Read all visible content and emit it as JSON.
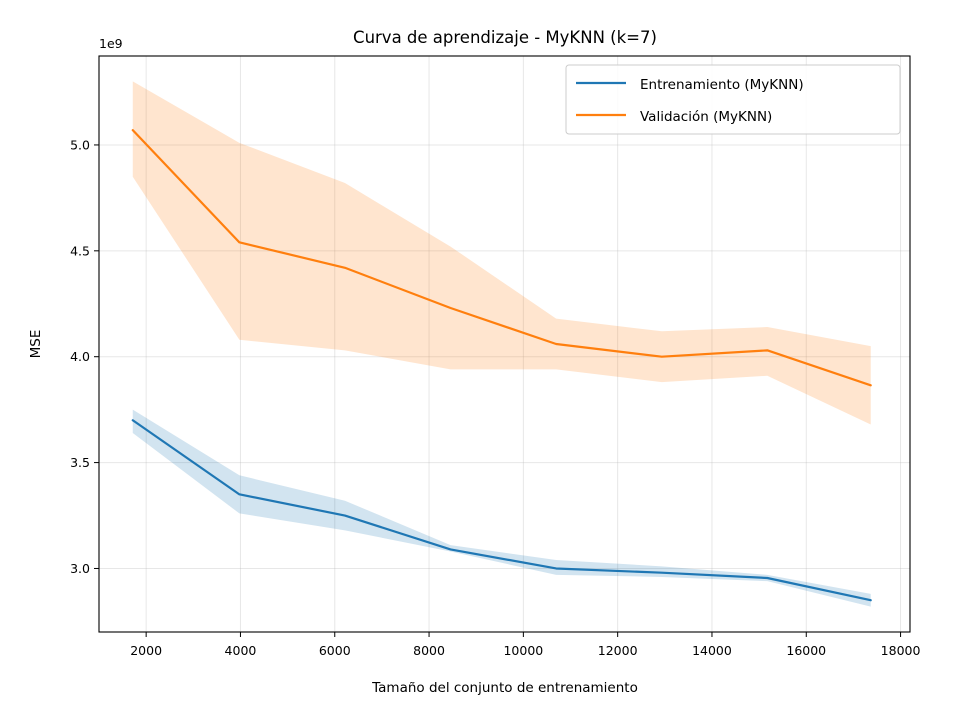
{
  "chart_data": {
    "type": "line",
    "title": "Curva de aprendizaje - MyKNN (k=7)",
    "xlabel": "Tamaño del conjunto de entrenamiento",
    "ylabel": "MSE",
    "y_offset_label": "1e9",
    "xlim": [
      1000,
      18200
    ],
    "ylim": [
      2.7,
      5.42
    ],
    "xticks": [
      2000,
      4000,
      6000,
      8000,
      10000,
      12000,
      14000,
      16000,
      18000
    ],
    "yticks": [
      3.0,
      3.5,
      4.0,
      4.5,
      5.0
    ],
    "xtick_labels": [
      "2000",
      "4000",
      "6000",
      "8000",
      "10000",
      "12000",
      "14000",
      "16000",
      "18000"
    ],
    "ytick_labels": [
      "3.0",
      "3.5",
      "4.0",
      "4.5",
      "5.0"
    ],
    "grid": true,
    "legend_position": "top-right",
    "x": [
      1716,
      3977,
      6216,
      8456,
      10695,
      12935,
      15174,
      17367
    ],
    "series": [
      {
        "name": "Entrenamiento (MyKNN)",
        "color": "#1f77b4",
        "band_color": "#1f77b4",
        "values": [
          3.7,
          3.35,
          3.25,
          3.09,
          3.0,
          2.98,
          2.955,
          2.85
        ],
        "lower": [
          3.64,
          3.26,
          3.18,
          3.08,
          2.97,
          2.96,
          2.94,
          2.82
        ],
        "upper": [
          3.75,
          3.44,
          3.32,
          3.11,
          3.04,
          3.01,
          2.97,
          2.88
        ]
      },
      {
        "name": "Validación (MyKNN)",
        "color": "#ff7f0e",
        "band_color": "#ff7f0e",
        "values": [
          5.07,
          4.54,
          4.42,
          4.23,
          4.06,
          4.0,
          4.03,
          3.865
        ],
        "lower": [
          4.85,
          4.08,
          4.03,
          3.94,
          3.94,
          3.88,
          3.91,
          3.68
        ],
        "upper": [
          5.3,
          5.01,
          4.82,
          4.52,
          4.18,
          4.12,
          4.14,
          4.05
        ]
      }
    ]
  }
}
